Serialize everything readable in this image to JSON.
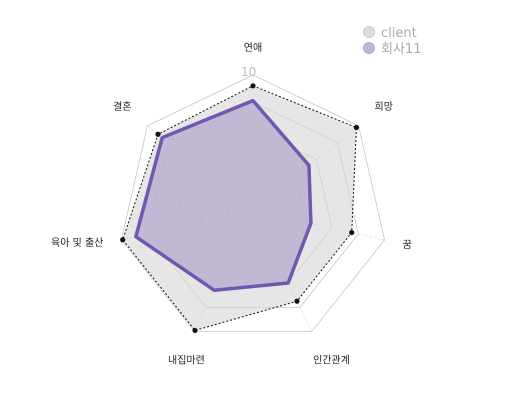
{
  "chart_data": {
    "type": "radar",
    "axes": [
      "연애",
      "희망",
      "꿈",
      "인간관계",
      "내집마련",
      "육아 및 출산",
      "결혼"
    ],
    "rmax": 10,
    "tick_labels": [
      "10"
    ],
    "grid_levels": 5,
    "legend_position": "top-right",
    "series": [
      {
        "name": "client",
        "values": [
          9.2,
          9.8,
          7.5,
          7.5,
          9.9,
          9.9,
          9.0
        ],
        "color": "#cccccc",
        "fill": "#d6d6d6",
        "style": "dotted"
      },
      {
        "name": "회사11",
        "values": [
          8.1,
          5.3,
          4.4,
          6.0,
          6.6,
          8.9,
          8.6
        ],
        "color": "#7058b0",
        "fill": "#b4aacd",
        "style": "solid"
      }
    ]
  }
}
